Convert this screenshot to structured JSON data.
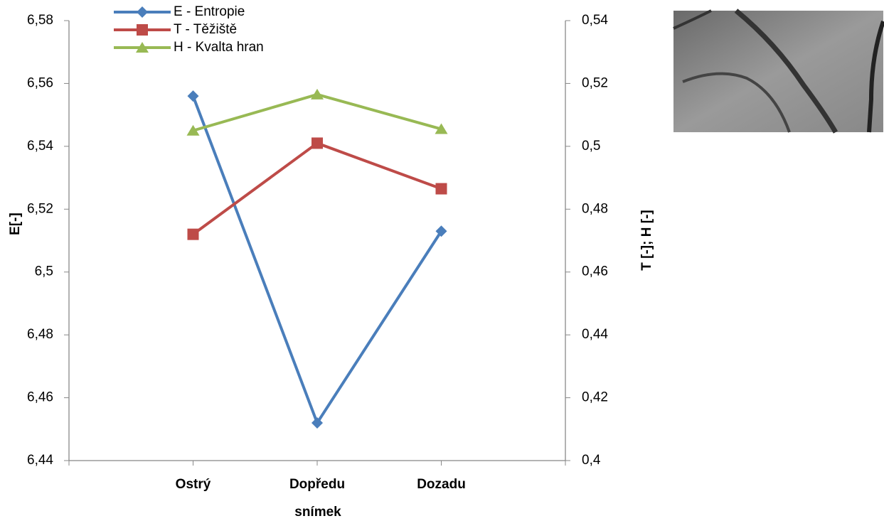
{
  "chart_data": {
    "type": "line",
    "x_label": "snímek",
    "y_label": "E[-]",
    "y2_label": "T [-]; H [-]",
    "categories": [
      null,
      "Ostrý",
      "Dopředu",
      "Dozadu",
      null
    ],
    "series": [
      {
        "name": "E - Entropie",
        "color": "#4a7ebb",
        "marker": "diamond",
        "axis": "y",
        "values": [
          null,
          6.556,
          6.452,
          6.513,
          null
        ]
      },
      {
        "name": "T - Těžiště",
        "color": "#be4b48",
        "marker": "square",
        "axis": "y2",
        "values": [
          null,
          0.472,
          0.501,
          0.4865,
          null
        ]
      },
      {
        "name": "H - Kvalta hran",
        "color": "#98b954",
        "marker": "triangle",
        "axis": "y2",
        "values": [
          null,
          0.505,
          0.5165,
          0.5055,
          null
        ]
      }
    ],
    "ylim": [
      6.44,
      6.58
    ],
    "yticks": [
      {
        "value": 6.44,
        "label": "6,44"
      },
      {
        "value": 6.46,
        "label": "6,46"
      },
      {
        "value": 6.48,
        "label": "6,48"
      },
      {
        "value": 6.5,
        "label": "6,5"
      },
      {
        "value": 6.52,
        "label": "6,52"
      },
      {
        "value": 6.54,
        "label": "6,54"
      },
      {
        "value": 6.56,
        "label": "6,56"
      },
      {
        "value": 6.58,
        "label": "6,58"
      }
    ],
    "y2lim": [
      0.4,
      0.54
    ],
    "y2ticks": [
      {
        "value": 0.4,
        "label": "0,4"
      },
      {
        "value": 0.42,
        "label": "0,42"
      },
      {
        "value": 0.44,
        "label": "0,44"
      },
      {
        "value": 0.46,
        "label": "0,46"
      },
      {
        "value": 0.48,
        "label": "0,48"
      },
      {
        "value": 0.5,
        "label": "0,5"
      },
      {
        "value": 0.52,
        "label": "0,52"
      },
      {
        "value": 0.54,
        "label": "0,54"
      }
    ],
    "legend": "top-left"
  }
}
